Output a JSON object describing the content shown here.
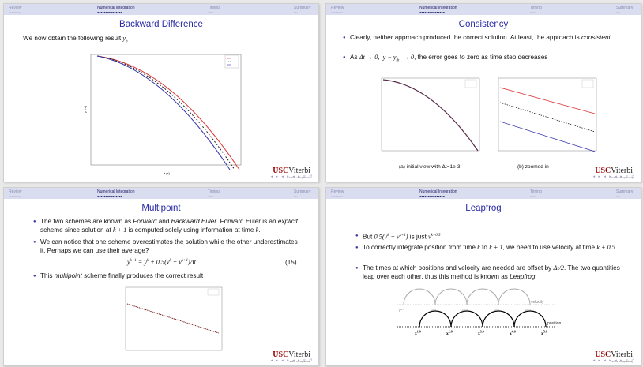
{
  "nav": {
    "sections": [
      "Review",
      "Numerical Integration",
      "Timing",
      "Summary"
    ]
  },
  "slides": [
    {
      "title": "Backward Difference",
      "intro": "We now obtain the following result",
      "intro_math": "y",
      "intro_math_sub": "b",
      "plot": {
        "xlabel": "t (s)",
        "ylabel": "y (m)"
      }
    },
    {
      "title": "Consistency",
      "b1_a": "Clearly, neither approach produced the correct solution. At least, the approach is ",
      "b1_em": "consistent",
      "b2_a": "As ",
      "b2_math": "Δt → 0, |y − y",
      "b2_math_sub": "th",
      "b2_math_b": "| → 0",
      "b2_b": ", the error goes to zero as time step decreases",
      "cap_left": "(a) initial view with Δt=1e-3",
      "cap_right": "(b) zoomed in"
    },
    {
      "title": "Multipoint",
      "b1_a": "The two schemes are known as ",
      "b1_em1": "Forward",
      "b1_b": " and ",
      "b1_em2": "Backward Euler",
      "b1_c": ". Forward Euler is an ",
      "b1_em3": "explicit",
      "b1_d": " scheme since solution at ",
      "b1_math": "k + 1",
      "b1_e": " is computed solely using information at time ",
      "b1_math2": "k",
      "b1_f": ".",
      "b2": "We can notice that one scheme overestimates the solution while the other underestimates it. Perhaps we can use their average?",
      "eq": "y",
      "eq_sup1": "k+1",
      "eq_mid": " = y",
      "eq_sup2": "k",
      "eq_mid2": " + 0.5(v",
      "eq_sup3": "k",
      "eq_mid3": " + v",
      "eq_sup4": "k+1",
      "eq_end": ")Δt",
      "eq_num": "(15)",
      "b3_a": "This ",
      "b3_em": "multipoint",
      "b3_b": " scheme finally produces the correct result"
    },
    {
      "title": "Leapfrog",
      "b1_a": "But ",
      "b1_math": "0.5(v",
      "b1_sup1": "k",
      "b1_math2": " + v",
      "b1_sup2": "k+1",
      "b1_math3": ")",
      "b1_b": " is just ",
      "b1_math4": "v",
      "b1_sup3": "k+0.5",
      "b2_a": "To correctly integrate position from time ",
      "b2_m1": "k",
      "b2_b": " to ",
      "b2_m2": "k + 1",
      "b2_c": ", we need to use velocity at time ",
      "b2_m3": "k + 0.5",
      "b2_d": ".",
      "b3_a": "The times at which positions and velocity are needed are offset by ",
      "b3_m": "Δt/2",
      "b3_b": ". The two quantities leap over each other, thus this method is known as ",
      "b3_em": "Leapfrog",
      "b3_c": ".",
      "diag": {
        "velocity": "velocity",
        "position": "position",
        "v_labels": [
          "v",
          "v",
          "v",
          "v",
          "v"
        ],
        "v_sups": [
          "0.5",
          "1.5",
          "2.5",
          "3.5",
          "4.5"
        ],
        "x_labels": [
          "x",
          "x",
          "x",
          "x",
          "x"
        ],
        "x_sups": [
          "1.0",
          "2.0",
          "3.0",
          "4.0",
          "5.0"
        ]
      }
    }
  ],
  "logo": {
    "usc": "USC",
    "viterbi": "Viterbi",
    "sub": "School of Engineering"
  }
}
